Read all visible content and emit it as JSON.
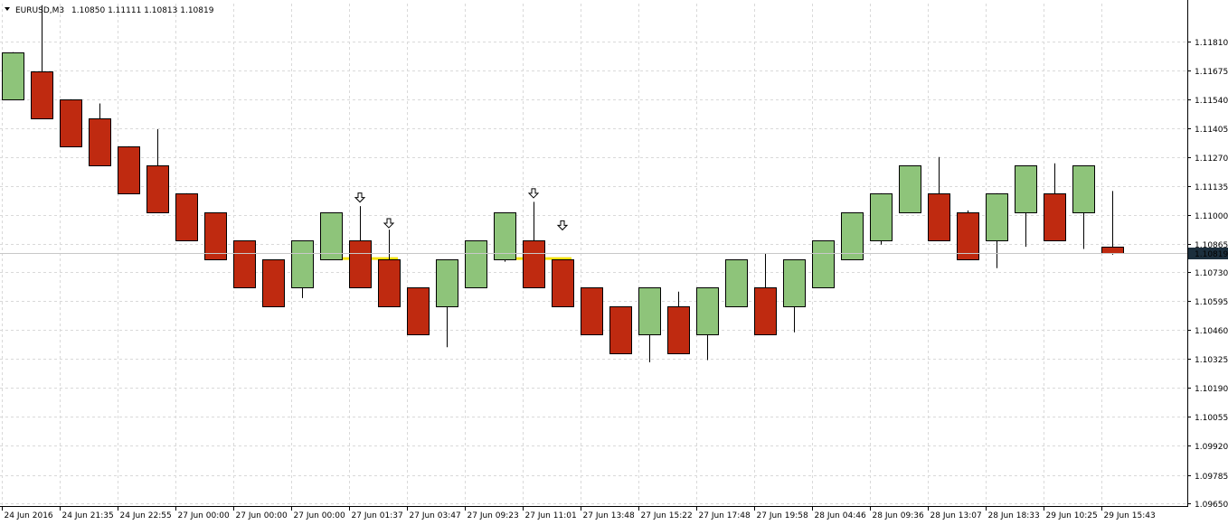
{
  "header": {
    "menu_icon": "triangle-down-icon",
    "symbol": "EURUSD,M3",
    "prices": "1.10850 1.11111 1.10813 1.10819"
  },
  "colors": {
    "bull": "#8ec47a",
    "bear": "#bf2a10",
    "outline": "#000000",
    "wick": "#000000",
    "grid": "#d9d9d9",
    "signal_line": "#f5e10c",
    "price_tag": "#1c2f3d"
  },
  "chart_data": {
    "type": "candlestick",
    "symbol": "EURUSD",
    "timeframe": "M3",
    "grid": true,
    "ylim": [
      1.0965,
      1.1189
    ],
    "y_ticks": [
      1.0965,
      1.0978,
      1.0992,
      1.10055,
      1.1019,
      1.10325,
      1.1046,
      1.10595,
      1.1073,
      1.10865,
      1.11,
      1.11135,
      1.1127,
      1.11405,
      1.1154,
      1.11675,
      1.1181
    ],
    "y_tick_labels": [
      "1.09650",
      "1.09785",
      "1.09920",
      "1.10055",
      "1.10190",
      "1.10325",
      "1.10460",
      "1.10595",
      "1.10730",
      "1.10865",
      "1.11000",
      "1.11135",
      "1.11270",
      "1.11405",
      "1.11540",
      "1.11675",
      "1.11810"
    ],
    "x_tick_labels": [
      {
        "index": 0,
        "label": "24 Jun 2016"
      },
      {
        "index": 2,
        "label": "24 Jun 21:35"
      },
      {
        "index": 4,
        "label": "24 Jun 22:55"
      },
      {
        "index": 6,
        "label": "27 Jun 00:00"
      },
      {
        "index": 8,
        "label": "27 Jun 00:00"
      },
      {
        "index": 10,
        "label": "27 Jun 00:00"
      },
      {
        "index": 12,
        "label": "27 Jun 01:37"
      },
      {
        "index": 14,
        "label": "27 Jun 03:47"
      },
      {
        "index": 16,
        "label": "27 Jun 09:23"
      },
      {
        "index": 18,
        "label": "27 Jun 11:01"
      },
      {
        "index": 20,
        "label": "27 Jun 13:48"
      },
      {
        "index": 22,
        "label": "27 Jun 15:22"
      },
      {
        "index": 24,
        "label": "27 Jun 17:48"
      },
      {
        "index": 26,
        "label": "27 Jun 19:58"
      },
      {
        "index": 28,
        "label": "28 Jun 04:46"
      },
      {
        "index": 30,
        "label": "28 Jun 09:36"
      },
      {
        "index": 32,
        "label": "28 Jun 13:07"
      },
      {
        "index": 34,
        "label": "28 Jun 18:33"
      },
      {
        "index": 36,
        "label": "29 Jun 10:25"
      },
      {
        "index": 38,
        "label": "29 Jun 15:43"
      }
    ],
    "current_price": 1.10819,
    "current_price_label": "1.10819",
    "candles": [
      {
        "o": 1.1154,
        "h": 1.1176,
        "l": 1.1154,
        "c": 1.1176
      },
      {
        "o": 1.1167,
        "h": 1.1198,
        "l": 1.1145,
        "c": 1.1145
      },
      {
        "o": 1.1154,
        "h": 1.1154,
        "l": 1.1132,
        "c": 1.1132
      },
      {
        "o": 1.1145,
        "h": 1.1152,
        "l": 1.1123,
        "c": 1.1123
      },
      {
        "o": 1.1132,
        "h": 1.1132,
        "l": 1.111,
        "c": 1.111
      },
      {
        "o": 1.1123,
        "h": 1.114,
        "l": 1.1101,
        "c": 1.1101
      },
      {
        "o": 1.111,
        "h": 1.111,
        "l": 1.1088,
        "c": 1.1088
      },
      {
        "o": 1.1101,
        "h": 1.1101,
        "l": 1.1079,
        "c": 1.1079
      },
      {
        "o": 1.1088,
        "h": 1.1088,
        "l": 1.1066,
        "c": 1.1066
      },
      {
        "o": 1.1079,
        "h": 1.1079,
        "l": 1.1057,
        "c": 1.1057
      },
      {
        "o": 1.1066,
        "h": 1.1088,
        "l": 1.1061,
        "c": 1.1088
      },
      {
        "o": 1.1079,
        "h": 1.1101,
        "l": 1.1079,
        "c": 1.1101
      },
      {
        "o": 1.1088,
        "h": 1.1104,
        "l": 1.1066,
        "c": 1.1066
      },
      {
        "o": 1.1079,
        "h": 1.1093,
        "l": 1.1057,
        "c": 1.1057
      },
      {
        "o": 1.1066,
        "h": 1.1066,
        "l": 1.1044,
        "c": 1.1044
      },
      {
        "o": 1.1057,
        "h": 1.1079,
        "l": 1.1038,
        "c": 1.1079
      },
      {
        "o": 1.1066,
        "h": 1.1088,
        "l": 1.1066,
        "c": 1.1088
      },
      {
        "o": 1.1079,
        "h": 1.1101,
        "l": 1.1078,
        "c": 1.1101
      },
      {
        "o": 1.1088,
        "h": 1.1106,
        "l": 1.1066,
        "c": 1.1066
      },
      {
        "o": 1.1079,
        "h": 1.1079,
        "l": 1.1057,
        "c": 1.1057
      },
      {
        "o": 1.1066,
        "h": 1.1066,
        "l": 1.1044,
        "c": 1.1044
      },
      {
        "o": 1.1057,
        "h": 1.1057,
        "l": 1.1035,
        "c": 1.1035
      },
      {
        "o": 1.1044,
        "h": 1.1066,
        "l": 1.1031,
        "c": 1.1066
      },
      {
        "o": 1.1057,
        "h": 1.1064,
        "l": 1.1035,
        "c": 1.1035
      },
      {
        "o": 1.1044,
        "h": 1.1066,
        "l": 1.1032,
        "c": 1.1066
      },
      {
        "o": 1.1057,
        "h": 1.1079,
        "l": 1.1057,
        "c": 1.1079
      },
      {
        "o": 1.1066,
        "h": 1.1082,
        "l": 1.1044,
        "c": 1.1044
      },
      {
        "o": 1.1057,
        "h": 1.1079,
        "l": 1.1045,
        "c": 1.1079
      },
      {
        "o": 1.1066,
        "h": 1.1088,
        "l": 1.1066,
        "c": 1.1088
      },
      {
        "o": 1.1079,
        "h": 1.1101,
        "l": 1.1079,
        "c": 1.1101
      },
      {
        "o": 1.1088,
        "h": 1.111,
        "l": 1.1086,
        "c": 1.111
      },
      {
        "o": 1.1101,
        "h": 1.1123,
        "l": 1.1101,
        "c": 1.1123
      },
      {
        "o": 1.111,
        "h": 1.1127,
        "l": 1.1088,
        "c": 1.1088
      },
      {
        "o": 1.1101,
        "h": 1.1102,
        "l": 1.1079,
        "c": 1.1079
      },
      {
        "o": 1.1088,
        "h": 1.111,
        "l": 1.1075,
        "c": 1.111
      },
      {
        "o": 1.1101,
        "h": 1.1123,
        "l": 1.1085,
        "c": 1.1123
      },
      {
        "o": 1.111,
        "h": 1.1124,
        "l": 1.1088,
        "c": 1.1088
      },
      {
        "o": 1.1101,
        "h": 1.1123,
        "l": 1.1084,
        "c": 1.1123
      },
      {
        "o": 1.1085,
        "h": 1.11111,
        "l": 1.10813,
        "c": 1.10819
      }
    ],
    "signal_arrows": [
      {
        "index": 12,
        "price": 1.1108
      },
      {
        "index": 13,
        "price": 1.1096
      },
      {
        "index": 18,
        "price": 1.111
      },
      {
        "index": 19,
        "price": 1.1095
      }
    ],
    "signal_lines": [
      {
        "from": 11,
        "to": 13,
        "price": 1.10795
      },
      {
        "from": 17,
        "to": 19,
        "price": 1.10795
      }
    ]
  }
}
